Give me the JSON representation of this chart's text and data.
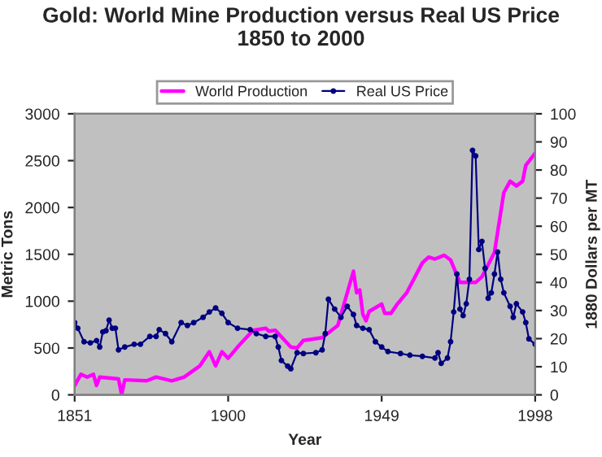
{
  "chart_data": {
    "type": "line",
    "title": "Gold: World Mine Production versus Real US Price\n1850 to 2000",
    "xlabel": "Year",
    "ylabel": "Metric Tons",
    "y2label": "1880 Dollars per MT",
    "xlim": [
      1851,
      1998
    ],
    "xticks": [
      1851,
      1900,
      1949,
      1998
    ],
    "ylim": [
      0,
      3000
    ],
    "yticks": [
      0,
      500,
      1000,
      1500,
      2000,
      2500,
      3000
    ],
    "y2lim": [
      0,
      100
    ],
    "y2ticks": [
      0,
      10,
      20,
      30,
      40,
      50,
      60,
      70,
      80,
      90,
      100
    ],
    "grid": false,
    "legend": "top",
    "series": [
      {
        "name": "World Production",
        "color": "#ff00ff",
        "marker": "none",
        "x": [
          1851,
          1853,
          1855,
          1857,
          1858,
          1859,
          1865,
          1866,
          1867,
          1874,
          1877,
          1882,
          1886,
          1891,
          1894,
          1896,
          1898,
          1900,
          1903,
          1908,
          1912,
          1913,
          1915,
          1920,
          1922,
          1924,
          1930,
          1935,
          1940,
          1941,
          1942,
          1943,
          1944,
          1945,
          1949,
          1950,
          1952,
          1954,
          1957,
          1962,
          1964,
          1966,
          1969,
          1971,
          1974,
          1979,
          1981,
          1985,
          1988,
          1990,
          1992,
          1994,
          1995,
          1998
        ],
        "values": [
          100,
          220,
          190,
          220,
          100,
          190,
          170,
          0,
          160,
          150,
          190,
          150,
          190,
          310,
          460,
          310,
          460,
          390,
          510,
          690,
          710,
          680,
          690,
          510,
          500,
          580,
          610,
          740,
          1320,
          1090,
          1120,
          860,
          790,
          890,
          970,
          870,
          870,
          970,
          1090,
          1410,
          1470,
          1450,
          1490,
          1440,
          1200,
          1200,
          1260,
          1520,
          2160,
          2280,
          2230,
          2280,
          2450,
          2580
        ]
      },
      {
        "name": "Real US Price",
        "color": "#000080",
        "marker": "circle",
        "axis": "y2",
        "x": [
          1851,
          1852,
          1854,
          1856,
          1858,
          1859,
          1860,
          1861,
          1862,
          1863,
          1864,
          1865,
          1867,
          1870,
          1872,
          1875,
          1877,
          1878,
          1880,
          1882,
          1885,
          1887,
          1889,
          1892,
          1894,
          1896,
          1898,
          1900,
          1903,
          1907,
          1909,
          1912,
          1915,
          1916,
          1917,
          1919,
          1920,
          1922,
          1924,
          1928,
          1930,
          1931,
          1932,
          1934,
          1936,
          1938,
          1940,
          1941,
          1943,
          1945,
          1947,
          1949,
          1951,
          1955,
          1958,
          1962,
          1966,
          1967,
          1968,
          1970,
          1971,
          1972,
          1973,
          1974,
          1975,
          1976,
          1977,
          1978,
          1979,
          1980,
          1981,
          1982,
          1983,
          1984,
          1985,
          1986,
          1987,
          1988,
          1990,
          1991,
          1992,
          1994,
          1995,
          1996,
          1998
        ],
        "values": [
          25.7,
          23.7,
          18.9,
          18.5,
          19.3,
          17,
          22.4,
          22.8,
          26.6,
          23.7,
          23.7,
          16,
          17,
          18,
          18,
          20.8,
          20.8,
          23.2,
          21.8,
          18.9,
          25.7,
          24.7,
          25.7,
          27.6,
          29.5,
          30.9,
          29,
          25.7,
          23.7,
          23.2,
          21.8,
          20.8,
          20.8,
          17,
          12.2,
          10.2,
          9.3,
          15,
          14.7,
          15,
          16,
          21.8,
          34,
          30.5,
          27.6,
          31.5,
          28.6,
          24.7,
          23.7,
          23.2,
          18.9,
          17,
          15.4,
          14.7,
          14.1,
          13.7,
          13.1,
          15,
          11.2,
          13.1,
          18.9,
          29.5,
          43,
          30.5,
          28.2,
          32.4,
          41.1,
          87,
          85,
          51.7,
          54.6,
          45,
          34.4,
          36.3,
          43,
          50.8,
          41.1,
          36.3,
          31.5,
          27.6,
          32.4,
          29.5,
          25.7,
          19.9,
          18
        ]
      }
    ]
  }
}
